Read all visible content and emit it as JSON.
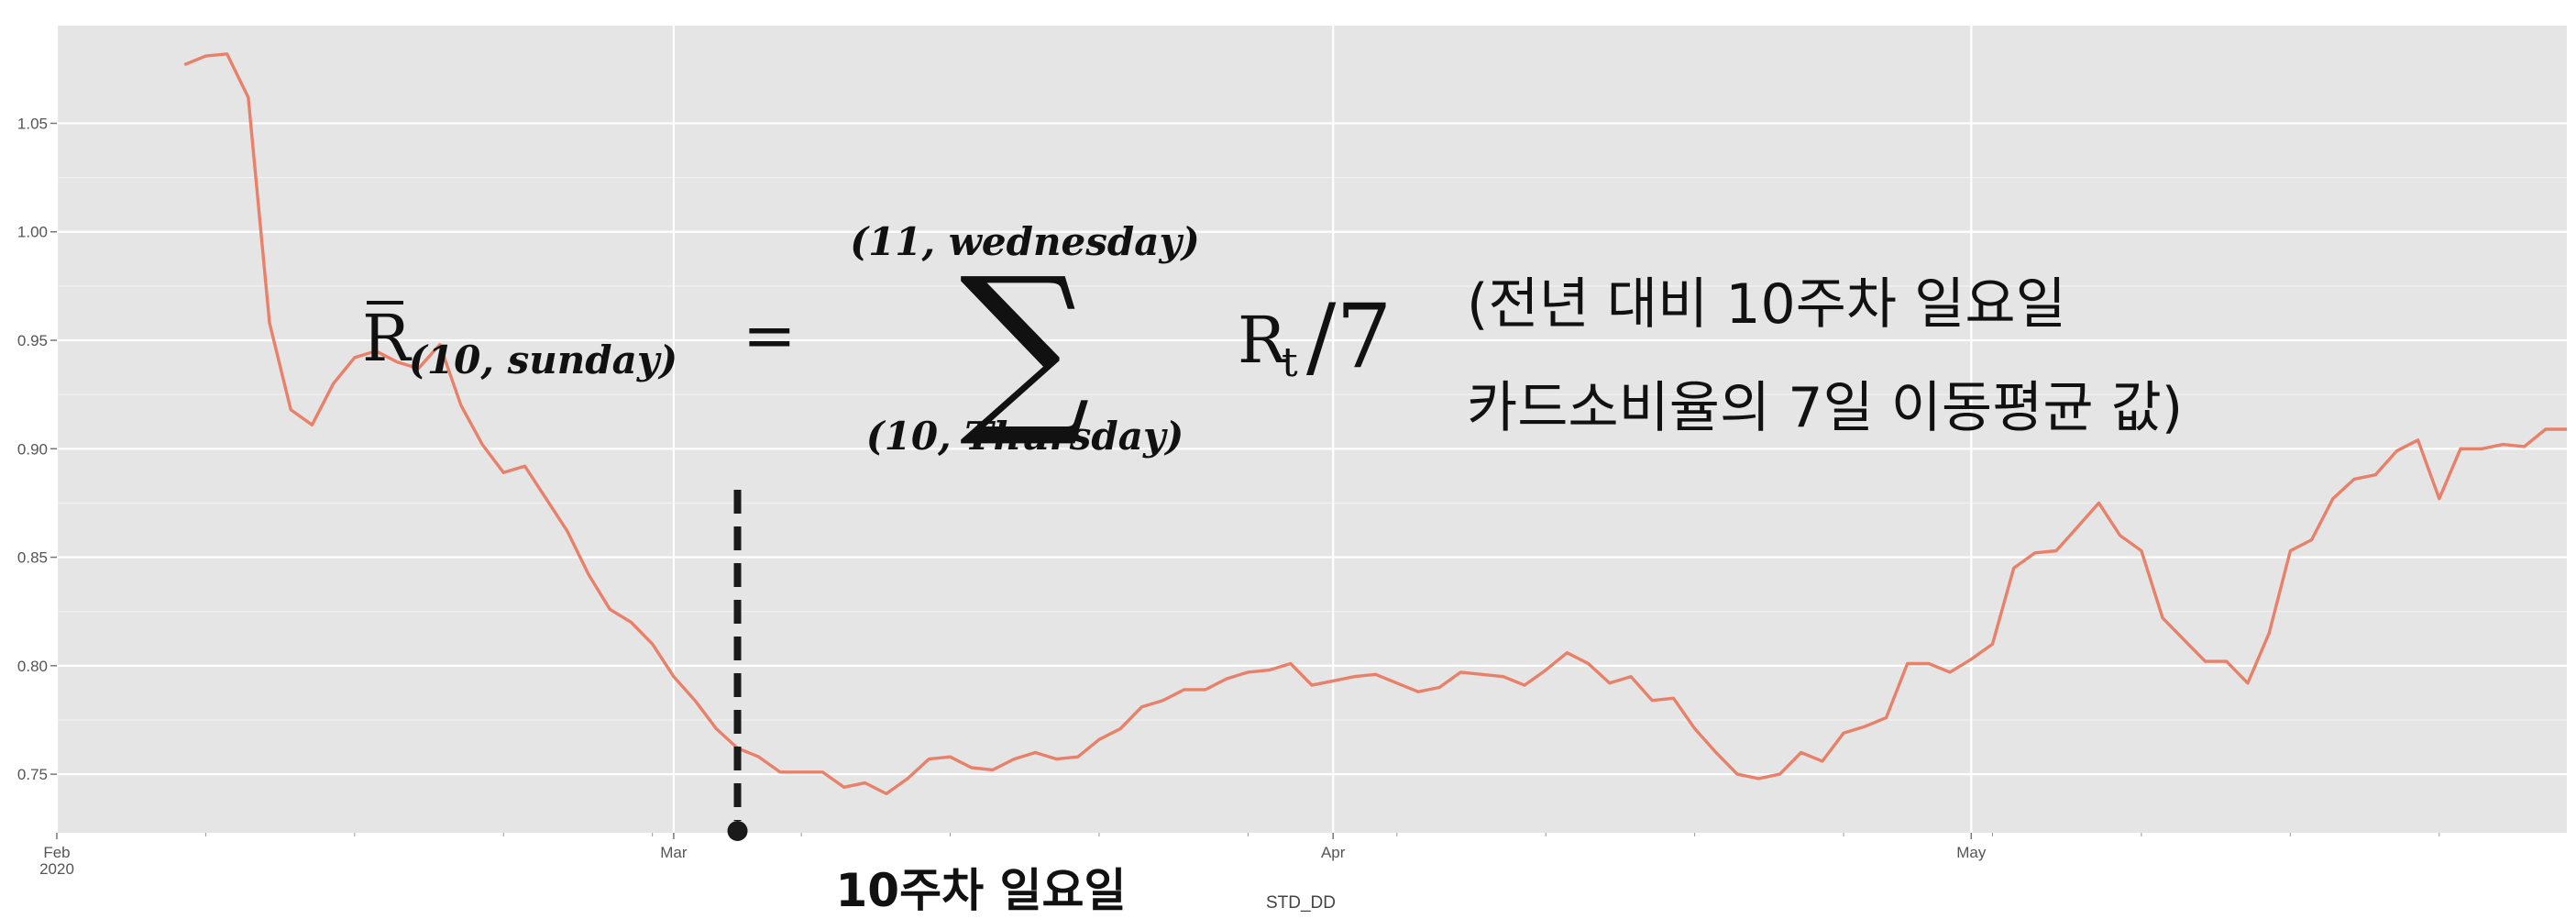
{
  "chart_data": {
    "type": "line",
    "title": "",
    "xlabel": "STD_DD",
    "ylabel": "",
    "x_ticks": [
      {
        "label": "Feb\n2020",
        "x": 0
      },
      {
        "label": "Mar",
        "x": 29
      },
      {
        "label": "Apr",
        "x": 60
      },
      {
        "label": "May",
        "x": 90
      }
    ],
    "xlim": [
      0,
      118
    ],
    "y_ticks": [
      "0.75",
      "0.80",
      "0.85",
      "0.90",
      "0.95",
      "1.00",
      "1.05"
    ],
    "ylim": [
      0.723,
      1.095
    ],
    "grid": true,
    "legend": false,
    "colors": {
      "line": "#e8806a",
      "panel": "#e5e5e5",
      "grid": "#ffffff"
    },
    "series": [
      {
        "x": [
          6,
          7,
          8,
          9,
          10,
          11,
          12,
          13,
          14,
          15,
          16,
          17,
          18,
          19,
          20,
          21,
          22,
          23,
          24,
          25,
          26,
          27,
          28,
          29,
          30,
          31,
          32,
          33,
          34,
          35,
          36,
          37,
          38,
          39,
          40,
          41,
          42,
          43,
          44,
          45,
          46,
          47,
          48,
          49,
          50,
          51,
          52,
          53,
          54,
          55,
          56,
          57,
          58,
          59,
          60,
          61,
          62,
          63,
          64,
          65,
          66,
          67,
          68,
          69,
          70,
          71,
          72,
          73,
          74,
          75,
          76,
          77,
          78,
          79,
          80,
          81,
          82,
          83,
          84,
          85,
          86,
          87,
          88,
          89,
          90,
          91,
          92,
          93,
          94,
          95,
          96,
          97,
          98,
          99,
          100,
          101,
          102,
          103,
          104,
          105,
          106,
          107,
          108,
          109,
          110,
          111,
          112,
          113,
          114,
          115,
          116,
          117,
          118
        ],
        "values": [
          1.077,
          1.081,
          1.082,
          1.062,
          0.958,
          0.918,
          0.911,
          0.93,
          0.942,
          0.945,
          0.94,
          0.937,
          0.948,
          0.92,
          0.902,
          0.889,
          0.892,
          0.877,
          0.862,
          0.842,
          0.826,
          0.82,
          0.81,
          0.795,
          0.784,
          0.771,
          0.762,
          0.758,
          0.751,
          0.751,
          0.751,
          0.744,
          0.746,
          0.741,
          0.748,
          0.757,
          0.758,
          0.753,
          0.752,
          0.757,
          0.76,
          0.757,
          0.758,
          0.766,
          0.771,
          0.781,
          0.784,
          0.789,
          0.789,
          0.794,
          0.797,
          0.798,
          0.801,
          0.791,
          0.793,
          0.795,
          0.796,
          0.792,
          0.788,
          0.79,
          0.797,
          0.796,
          0.795,
          0.791,
          0.798,
          0.806,
          0.801,
          0.792,
          0.795,
          0.784,
          0.785,
          0.771,
          0.76,
          0.75,
          0.748,
          0.75,
          0.76,
          0.756,
          0.769,
          0.772,
          0.776,
          0.801,
          0.801,
          0.797,
          0.803,
          0.81,
          0.845,
          0.852,
          0.853,
          0.864,
          0.875,
          0.86,
          0.853,
          0.822,
          0.812,
          0.802,
          0.802,
          0.792,
          0.815,
          0.853,
          0.858,
          0.877,
          0.886,
          0.888,
          0.899,
          0.904,
          0.877,
          0.9,
          0.9,
          0.902,
          0.901,
          0.909,
          0.909
        ]
      }
    ],
    "annotations": {
      "marker_x": 32,
      "marker_label": "10주차 일요일",
      "formula": {
        "lhs_base": "R",
        "lhs_sub": "(10, sunday)",
        "equals": "=",
        "sum_symbol": "∑",
        "upper_limit": "(11, wednesday)",
        "lower_limit": "(10, Thursday)",
        "term": "R",
        "term_sub": "t",
        "divide": "/7"
      },
      "note_line1": "(전년 대비 10주차 일요일",
      "note_line2": "카드소비율의 7일 이동평균 값)"
    }
  }
}
